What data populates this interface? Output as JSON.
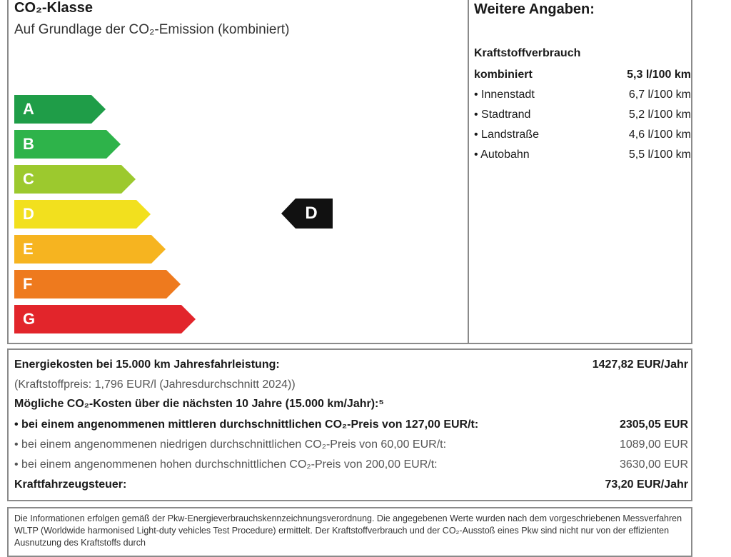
{
  "label": {
    "title": "CO₂-Klasse",
    "subtitle": "Auf Grundlage der CO₂-Emission (kombiniert)",
    "classes": [
      {
        "letter": "A",
        "color": "#1f9d48"
      },
      {
        "letter": "B",
        "color": "#2eb34a"
      },
      {
        "letter": "C",
        "color": "#9cc92e"
      },
      {
        "letter": "D",
        "color": "#f2e01e"
      },
      {
        "letter": "E",
        "color": "#f6b420"
      },
      {
        "letter": "F",
        "color": "#ee7a1e"
      },
      {
        "letter": "G",
        "color": "#e2252b"
      }
    ],
    "current_class": "D"
  },
  "details": {
    "title": "Weitere Angaben:",
    "fuel_heading": "Kraftstoffverbrauch",
    "rows": [
      {
        "label": "kombiniert",
        "value": "5,3 l/100 km"
      },
      {
        "label": "• Innenstadt",
        "value": "6,7 l/100 km"
      },
      {
        "label": "• Stadtrand",
        "value": "5,2 l/100 km"
      },
      {
        "label": "• Landstraße",
        "value": "4,6 l/100 km"
      },
      {
        "label": "• Autobahn",
        "value": "5,5 l/100 km"
      }
    ]
  },
  "costs": {
    "energy_label": "Energiekosten bei 15.000 km Jahresfahrleistung:",
    "energy_value": "1427,82 EUR/Jahr",
    "fuel_price": "(Kraftstoffpreis: 1,796 EUR/l (Jahresdurchschnitt 2024))",
    "co2_heading": "Mögliche CO₂-Kosten über die nächsten 10 Jahre (15.000 km/Jahr):⁵",
    "co2_rows": [
      {
        "label": "• bei einem angenommenen mittleren durchschnittlichen CO₂-Preis von 127,00 EUR/t:",
        "value": "2305,05 EUR"
      },
      {
        "label": "• bei einem angenommenen niedrigen durchschnittlichen CO₂-Preis von 60,00 EUR/t:",
        "value": "1089,00 EUR"
      },
      {
        "label": "• bei einem angenommenen hohen durchschnittlichen CO₂-Preis von 200,00 EUR/t:",
        "value": "3630,00 EUR"
      }
    ],
    "tax_label": "Kraftfahrzeugsteuer:",
    "tax_value": "73,20 EUR/Jahr"
  },
  "footer": {
    "text": "Die Informationen erfolgen gemäß der Pkw-Energieverbrauchskennzeichnungsverordnung. Die angegebenen Werte wurden nach dem vorgeschriebenen Messverfahren WLTP (Worldwide harmonised Light-duty vehicles Test Procedure) ermittelt. Der Kraftstoffverbrauch und der CO₂-Ausstoß eines Pkw sind nicht nur von der effizienten Ausnutzung des Kraftstoffs durch"
  }
}
